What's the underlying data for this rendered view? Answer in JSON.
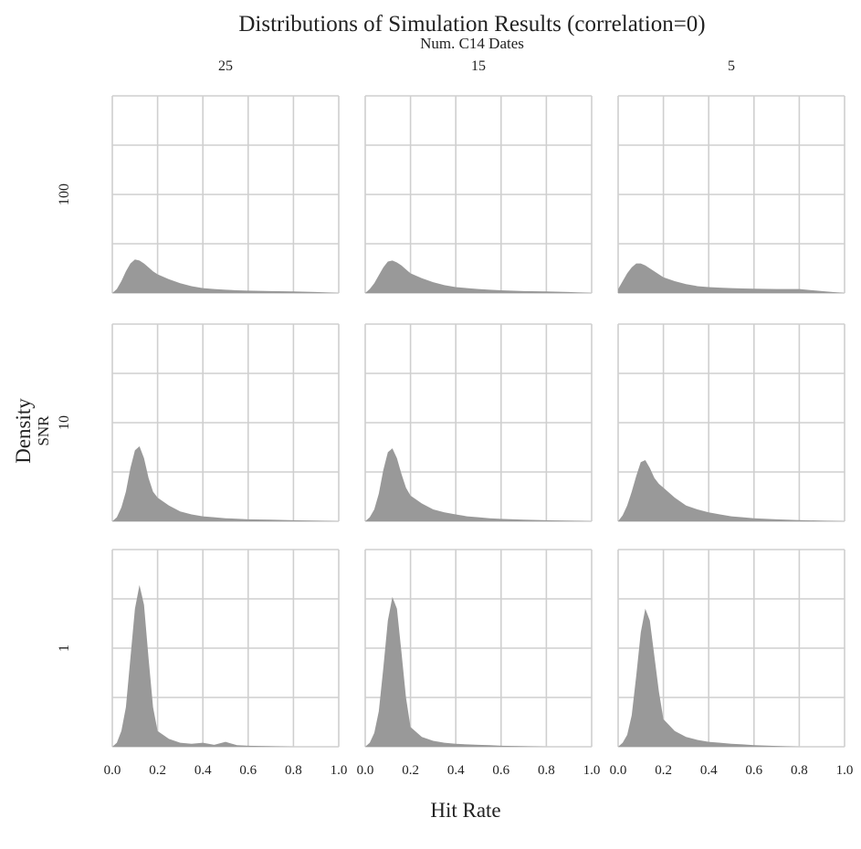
{
  "chart_data": {
    "type": "area",
    "title": "Distributions of Simulation Results (correlation=0)",
    "xlabel": "Hit Rate",
    "ylabel": "Density",
    "col_facet_label": "Num. C14 Dates",
    "row_facet_label": "SNR",
    "columns": [
      "25",
      "15",
      "5"
    ],
    "rows": [
      "100",
      "10",
      "1"
    ],
    "xlim": [
      0,
      1
    ],
    "x_ticks": [
      "0.0",
      "0.2",
      "0.4",
      "0.6",
      "0.8",
      "1.0"
    ],
    "ylim": [
      0,
      1
    ],
    "y_gridlines": 5,
    "grid": true,
    "fill_color": "#999999",
    "x": [
      0.0,
      0.02,
      0.04,
      0.06,
      0.08,
      0.1,
      0.12,
      0.14,
      0.16,
      0.18,
      0.2,
      0.25,
      0.3,
      0.35,
      0.4,
      0.45,
      0.5,
      0.55,
      0.6,
      0.7,
      0.8,
      0.9,
      1.0
    ],
    "panels": [
      {
        "row": "100",
        "col": "25",
        "density": [
          0.0,
          0.02,
          0.06,
          0.11,
          0.15,
          0.17,
          0.165,
          0.15,
          0.13,
          0.11,
          0.095,
          0.07,
          0.05,
          0.035,
          0.025,
          0.02,
          0.017,
          0.014,
          0.012,
          0.01,
          0.008,
          0.005,
          0.0
        ]
      },
      {
        "row": "100",
        "col": "15",
        "density": [
          0.0,
          0.02,
          0.05,
          0.09,
          0.13,
          0.16,
          0.165,
          0.155,
          0.14,
          0.12,
          0.1,
          0.075,
          0.055,
          0.04,
          0.03,
          0.025,
          0.02,
          0.017,
          0.014,
          0.01,
          0.008,
          0.005,
          0.0
        ]
      },
      {
        "row": "100",
        "col": "5",
        "density": [
          0.02,
          0.06,
          0.1,
          0.13,
          0.15,
          0.15,
          0.14,
          0.125,
          0.11,
          0.095,
          0.08,
          0.06,
          0.045,
          0.035,
          0.03,
          0.027,
          0.025,
          0.023,
          0.022,
          0.02,
          0.02,
          0.01,
          0.0
        ]
      },
      {
        "row": "10",
        "col": "25",
        "density": [
          0.0,
          0.02,
          0.07,
          0.15,
          0.27,
          0.36,
          0.38,
          0.32,
          0.22,
          0.15,
          0.12,
          0.08,
          0.05,
          0.035,
          0.025,
          0.02,
          0.015,
          0.013,
          0.01,
          0.008,
          0.005,
          0.003,
          0.0
        ]
      },
      {
        "row": "10",
        "col": "15",
        "density": [
          0.0,
          0.02,
          0.06,
          0.14,
          0.26,
          0.35,
          0.37,
          0.32,
          0.24,
          0.17,
          0.13,
          0.09,
          0.06,
          0.045,
          0.035,
          0.025,
          0.02,
          0.015,
          0.012,
          0.008,
          0.005,
          0.003,
          0.0
        ]
      },
      {
        "row": "10",
        "col": "5",
        "density": [
          0.0,
          0.03,
          0.08,
          0.15,
          0.23,
          0.3,
          0.31,
          0.27,
          0.22,
          0.19,
          0.17,
          0.12,
          0.08,
          0.06,
          0.045,
          0.035,
          0.025,
          0.02,
          0.015,
          0.01,
          0.006,
          0.003,
          0.0
        ]
      },
      {
        "row": "1",
        "col": "25",
        "density": [
          0.0,
          0.02,
          0.08,
          0.2,
          0.45,
          0.7,
          0.82,
          0.72,
          0.45,
          0.2,
          0.08,
          0.04,
          0.02,
          0.015,
          0.02,
          0.01,
          0.025,
          0.008,
          0.005,
          0.003,
          0.0,
          0.0,
          0.0
        ]
      },
      {
        "row": "1",
        "col": "15",
        "density": [
          0.0,
          0.02,
          0.07,
          0.18,
          0.4,
          0.64,
          0.76,
          0.7,
          0.48,
          0.25,
          0.1,
          0.05,
          0.03,
          0.02,
          0.015,
          0.012,
          0.01,
          0.008,
          0.005,
          0.003,
          0.0,
          0.0,
          0.0
        ]
      },
      {
        "row": "1",
        "col": "5",
        "density": [
          0.0,
          0.02,
          0.06,
          0.16,
          0.36,
          0.58,
          0.7,
          0.64,
          0.46,
          0.28,
          0.14,
          0.08,
          0.05,
          0.035,
          0.025,
          0.02,
          0.015,
          0.012,
          0.008,
          0.004,
          0.0,
          0.0,
          0.0
        ]
      }
    ]
  }
}
